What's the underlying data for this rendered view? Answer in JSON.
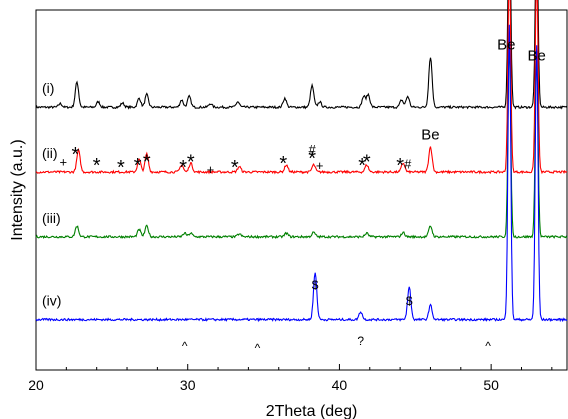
{
  "chart_data": {
    "type": "line",
    "xlabel": "2Theta (deg)",
    "ylabel": "Intensity (a.u.)",
    "xlim": [
      20,
      55
    ],
    "x_ticks": [
      20,
      30,
      40,
      50
    ],
    "colors": {
      "i": "#000000",
      "ii": "#ff0000",
      "iii": "#008000",
      "iv": "#0000ff"
    },
    "series": [
      {
        "name": "(i)",
        "baseline": 0.73,
        "peaks": [
          [
            21.6,
            0.01
          ],
          [
            22.7,
            0.07
          ],
          [
            24.1,
            0.015
          ],
          [
            25.7,
            0.012
          ],
          [
            26.8,
            0.025
          ],
          [
            27.3,
            0.035
          ],
          [
            29.6,
            0.02
          ],
          [
            30.1,
            0.03
          ],
          [
            31.5,
            0.01
          ],
          [
            33.3,
            0.015
          ],
          [
            36.4,
            0.025
          ],
          [
            38.2,
            0.06
          ],
          [
            38.7,
            0.015
          ],
          [
            41.6,
            0.03
          ],
          [
            41.9,
            0.035
          ],
          [
            44.1,
            0.02
          ],
          [
            44.5,
            0.03
          ],
          [
            46.0,
            0.14
          ],
          [
            51.2,
            0.55
          ],
          [
            53.0,
            0.5
          ]
        ]
      },
      {
        "name": "(ii)",
        "baseline": 0.55,
        "peaks": [
          [
            22.8,
            0.06
          ],
          [
            26.8,
            0.035
          ],
          [
            27.3,
            0.05
          ],
          [
            29.6,
            0.02
          ],
          [
            30.2,
            0.025
          ],
          [
            33.4,
            0.015
          ],
          [
            36.5,
            0.02
          ],
          [
            38.3,
            0.02
          ],
          [
            41.8,
            0.02
          ],
          [
            44.2,
            0.025
          ],
          [
            46.0,
            0.07
          ],
          [
            51.2,
            0.57
          ],
          [
            53.0,
            0.55
          ]
        ]
      },
      {
        "name": "(iii)",
        "baseline": 0.37,
        "peaks": [
          [
            22.7,
            0.03
          ],
          [
            26.8,
            0.02
          ],
          [
            27.3,
            0.03
          ],
          [
            29.8,
            0.01
          ],
          [
            30.2,
            0.01
          ],
          [
            33.4,
            0.008
          ],
          [
            36.5,
            0.01
          ],
          [
            38.3,
            0.012
          ],
          [
            41.8,
            0.01
          ],
          [
            44.2,
            0.012
          ],
          [
            46.0,
            0.03
          ],
          [
            51.2,
            0.54
          ],
          [
            53.0,
            0.52
          ]
        ]
      },
      {
        "name": "(iv)",
        "baseline": 0.14,
        "peaks": [
          [
            38.4,
            0.13
          ],
          [
            41.4,
            0.022
          ],
          [
            44.6,
            0.09
          ],
          [
            46.0,
            0.04
          ],
          [
            51.2,
            0.82
          ],
          [
            53.0,
            0.76
          ]
        ]
      }
    ],
    "annotations": [
      {
        "text": "Be",
        "x": 51.0,
        "y": 0.89,
        "size": 15
      },
      {
        "text": "Be",
        "x": 53.0,
        "y": 0.86,
        "size": 15
      },
      {
        "text": "Be",
        "x": 46.0,
        "y": 0.64,
        "size": 15
      },
      {
        "text": "*",
        "x": 22.6,
        "y": 0.58,
        "size": 20
      },
      {
        "text": "+",
        "x": 21.8,
        "y": 0.565,
        "size": 13
      },
      {
        "text": "*",
        "x": 24.0,
        "y": 0.55,
        "size": 20
      },
      {
        "text": "*",
        "x": 25.6,
        "y": 0.545,
        "size": 20
      },
      {
        "text": "*",
        "x": 26.7,
        "y": 0.55,
        "size": 20
      },
      {
        "text": "*",
        "x": 27.3,
        "y": 0.56,
        "size": 20
      },
      {
        "text": "*",
        "x": 29.7,
        "y": 0.545,
        "size": 20
      },
      {
        "text": "*",
        "x": 30.2,
        "y": 0.56,
        "size": 20
      },
      {
        "text": "+",
        "x": 31.5,
        "y": 0.545,
        "size": 13
      },
      {
        "text": "*",
        "x": 33.1,
        "y": 0.545,
        "size": 20
      },
      {
        "text": "*",
        "x": 36.3,
        "y": 0.555,
        "size": 20
      },
      {
        "text": "#",
        "x": 38.2,
        "y": 0.6,
        "size": 13
      },
      {
        "text": "*",
        "x": 38.2,
        "y": 0.57,
        "size": 20
      },
      {
        "text": "+",
        "x": 38.7,
        "y": 0.555,
        "size": 13
      },
      {
        "text": "*",
        "x": 41.5,
        "y": 0.55,
        "size": 20
      },
      {
        "text": "*",
        "x": 41.8,
        "y": 0.56,
        "size": 20
      },
      {
        "text": "*",
        "x": 44.0,
        "y": 0.55,
        "size": 20
      },
      {
        "text": "#",
        "x": 44.5,
        "y": 0.56,
        "size": 13
      },
      {
        "text": "^",
        "x": 29.8,
        "y": 0.055,
        "size": 12
      },
      {
        "text": "^",
        "x": 34.6,
        "y": 0.05,
        "size": 12
      },
      {
        "text": "$",
        "x": 38.4,
        "y": 0.225,
        "size": 12
      },
      {
        "text": "?",
        "x": 41.4,
        "y": 0.07,
        "size": 12
      },
      {
        "text": "$",
        "x": 44.6,
        "y": 0.18,
        "size": 12
      },
      {
        "text": "^",
        "x": 49.8,
        "y": 0.055,
        "size": 12
      }
    ]
  }
}
